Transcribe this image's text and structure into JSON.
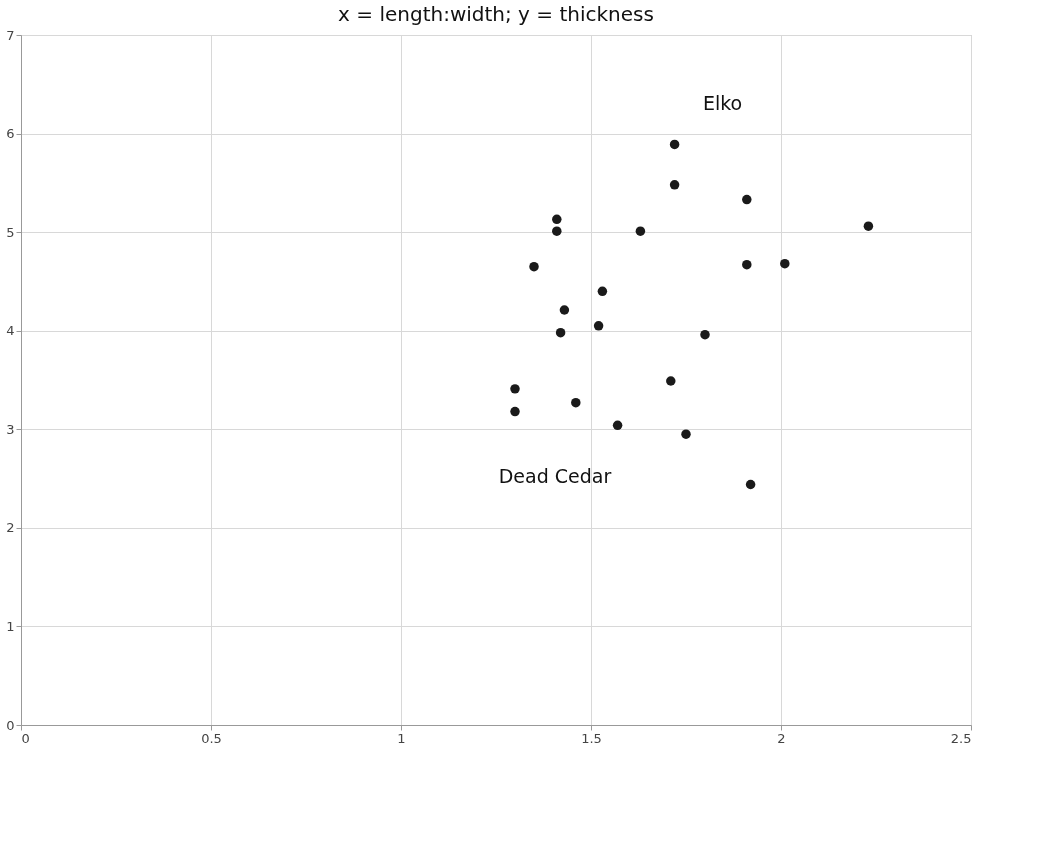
{
  "chart_data": {
    "type": "scatter",
    "title": "x = length:width; y = thickness",
    "series": [
      {
        "name": "Elko",
        "color": "#1a1a1a",
        "x": [
          1.72,
          1.72,
          1.91,
          2.23,
          1.41,
          1.41,
          1.63,
          1.35,
          1.91,
          2.01,
          1.53,
          1.43,
          1.42,
          1.52
        ],
        "values": [
          5.89,
          5.48,
          5.33,
          5.06,
          5.13,
          5.01,
          5.01,
          4.65,
          4.67,
          4.68,
          4.4,
          4.21,
          3.98,
          4.05
        ]
      },
      {
        "name": "Dead Cedar",
        "color": "#1a1a1a",
        "x": [
          1.8,
          1.3,
          1.3,
          1.46,
          1.71,
          1.57,
          1.75,
          1.92
        ],
        "values": [
          3.96,
          3.41,
          3.18,
          3.27,
          3.49,
          3.04,
          2.95,
          2.44
        ]
      }
    ],
    "xlim": [
      0,
      2.5
    ],
    "xticks": [
      0,
      0.5,
      1,
      1.5,
      2,
      2.5
    ],
    "ylim": [
      0,
      7
    ],
    "yticks": [
      0,
      1,
      2,
      3,
      4,
      5,
      6,
      7
    ],
    "grid": true,
    "marker": "circle",
    "legend": false
  }
}
